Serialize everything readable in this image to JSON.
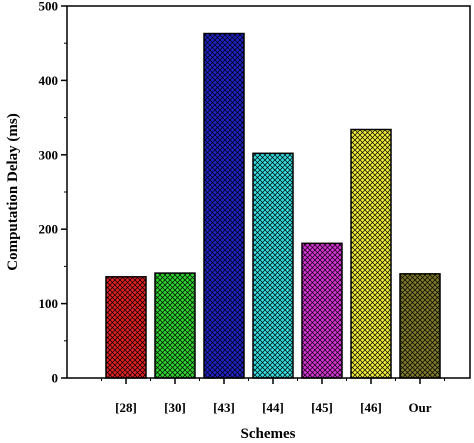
{
  "chart_data": {
    "type": "bar",
    "xlabel": "Schemes",
    "ylabel": "Computation Delay (ms)",
    "categories": [
      "[28]",
      "[30]",
      "[43]",
      "[44]",
      "[45]",
      "[46]",
      "Our"
    ],
    "values": [
      136,
      141,
      463,
      302,
      181,
      334,
      140
    ],
    "colors": [
      "#e02020",
      "#2ed62e",
      "#1f22c8",
      "#33dde0",
      "#d632d6",
      "#f2ee3a",
      "#7f7a2a"
    ],
    "ylim": [
      0,
      500
    ],
    "yticks": [
      0,
      100,
      200,
      300,
      400,
      500
    ],
    "grid": false,
    "legend": "none",
    "pattern": "crosshatch"
  }
}
